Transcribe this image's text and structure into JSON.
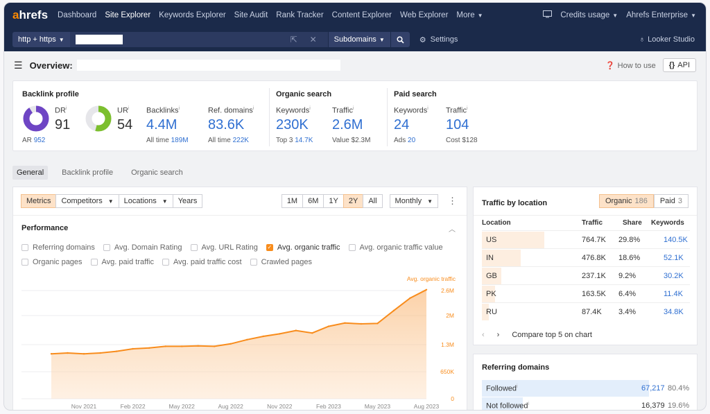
{
  "colors": {
    "nav_bg": "#1b2a4a",
    "accent_orange": "#f88c1c",
    "link_blue": "#2f6fd1",
    "donut_dr": "#6e45c4",
    "donut_ur": "#7cbf2e"
  },
  "topnav": {
    "logo_a": "a",
    "logo_rest": "hrefs",
    "items": [
      "Dashboard",
      "Site Explorer",
      "Keywords Explorer",
      "Site Audit",
      "Rank Tracker",
      "Content Explorer",
      "Web Explorer",
      "More"
    ],
    "active_index": 1,
    "credits": "Credits usage",
    "account": "Ahrefs Enterprise",
    "monitor_icon": "monitor-icon"
  },
  "urlbar": {
    "protocol": "http + https",
    "mode": "Subdomains",
    "settings": "Settings",
    "looker": "Looker Studio"
  },
  "overview": {
    "title": "Overview:",
    "how_to_use": "How to use",
    "api": "API"
  },
  "summary": {
    "backlink_profile": {
      "title": "Backlink profile",
      "dr_label": "DR",
      "dr_value": "91",
      "ur_label": "UR",
      "ur_value": "54",
      "ar_label": "AR",
      "ar_value": "952",
      "backlinks_label": "Backlinks",
      "backlinks_value": "4.4M",
      "backlinks_sub_label": "All time",
      "backlinks_sub_value": "189M",
      "refdomains_label": "Ref. domains",
      "refdomains_value": "83.6K",
      "refdomains_sub_label": "All time",
      "refdomains_sub_value": "222K",
      "dr_fill": 0.91,
      "ur_fill": 0.54
    },
    "organic_search": {
      "title": "Organic search",
      "keywords_label": "Keywords",
      "keywords_value": "230K",
      "keywords_sub_label": "Top 3",
      "keywords_sub_value": "14.7K",
      "traffic_label": "Traffic",
      "traffic_value": "2.6M",
      "traffic_sub": "Value $2.3M"
    },
    "paid_search": {
      "title": "Paid search",
      "keywords_label": "Keywords",
      "keywords_value": "24",
      "keywords_sub_label": "Ads",
      "keywords_sub_value": "20",
      "traffic_label": "Traffic",
      "traffic_value": "104",
      "traffic_sub": "Cost $128"
    }
  },
  "tabs": [
    "General",
    "Backlink profile",
    "Organic search"
  ],
  "controls": {
    "metrics": "Metrics",
    "competitors": "Competitors",
    "locations": "Locations",
    "years": "Years",
    "ranges": [
      "1M",
      "6M",
      "1Y",
      "2Y",
      "All"
    ],
    "active_range": "2Y",
    "interval": "Monthly"
  },
  "performance": {
    "title": "Performance",
    "checks_row1": [
      {
        "label": "Referring domains",
        "on": false
      },
      {
        "label": "Avg. Domain Rating",
        "on": false
      },
      {
        "label": "Avg. URL Rating",
        "on": false
      },
      {
        "label": "Avg. organic traffic",
        "on": true
      },
      {
        "label": "Avg. organic traffic value",
        "on": false
      }
    ],
    "checks_row2": [
      {
        "label": "Organic pages",
        "on": false
      },
      {
        "label": "Avg. paid traffic",
        "on": false
      },
      {
        "label": "Avg. paid traffic cost",
        "on": false
      },
      {
        "label": "Crawled pages",
        "on": false
      }
    ]
  },
  "chart_data": {
    "type": "area",
    "title": "",
    "series": [
      {
        "name": "Avg. organic traffic",
        "x": [
          "2021-09",
          "2021-10",
          "2021-11",
          "2021-12",
          "2022-01",
          "2022-02",
          "2022-03",
          "2022-04",
          "2022-05",
          "2022-06",
          "2022-07",
          "2022-08",
          "2022-09",
          "2022-10",
          "2022-11",
          "2022-12",
          "2023-01",
          "2023-02",
          "2023-03",
          "2023-04",
          "2023-05",
          "2023-06",
          "2023-07",
          "2023-08"
        ],
        "values": [
          1.08,
          1.1,
          1.08,
          1.1,
          1.14,
          1.2,
          1.22,
          1.26,
          1.26,
          1.27,
          1.26,
          1.32,
          1.42,
          1.5,
          1.56,
          1.64,
          1.58,
          1.74,
          1.82,
          1.8,
          1.81,
          2.12,
          2.42,
          2.62
        ]
      }
    ],
    "x_ticks": [
      "Nov 2021",
      "Feb 2022",
      "May 2022",
      "Aug 2022",
      "Nov 2022",
      "Feb 2023",
      "May 2023",
      "Aug 2023"
    ],
    "y_ticks": [
      "0",
      "650K",
      "1.3M",
      "2M",
      "2.6M"
    ],
    "ylim": [
      0,
      2.8
    ],
    "y_unit": "M",
    "grid": true
  },
  "traffic_by_location": {
    "title": "Traffic by location",
    "organic_label": "Organic",
    "organic_count": "186",
    "paid_label": "Paid",
    "paid_count": "3",
    "headers": [
      "Location",
      "Traffic",
      "Share",
      "Keywords"
    ],
    "rows": [
      {
        "loc": "US",
        "traffic": "764.7K",
        "share": "29.8%",
        "keywords": "140.5K",
        "share_frac": 0.298
      },
      {
        "loc": "IN",
        "traffic": "476.8K",
        "share": "18.6%",
        "keywords": "52.1K",
        "share_frac": 0.186
      },
      {
        "loc": "GB",
        "traffic": "237.1K",
        "share": "9.2%",
        "keywords": "30.2K",
        "share_frac": 0.092
      },
      {
        "loc": "PK",
        "traffic": "163.5K",
        "share": "6.4%",
        "keywords": "11.4K",
        "share_frac": 0.064
      },
      {
        "loc": "RU",
        "traffic": "87.4K",
        "share": "3.4%",
        "keywords": "34.8K",
        "share_frac": 0.034
      }
    ],
    "compare": "Compare top 5 on chart"
  },
  "referring_domains": {
    "title": "Referring domains",
    "rows": [
      {
        "label": "Followed",
        "value": "67,217",
        "pct": "80.4%",
        "frac": 0.804
      },
      {
        "label": "Not followed",
        "value": "16,379",
        "pct": "19.6%",
        "frac": 0.196
      }
    ]
  }
}
